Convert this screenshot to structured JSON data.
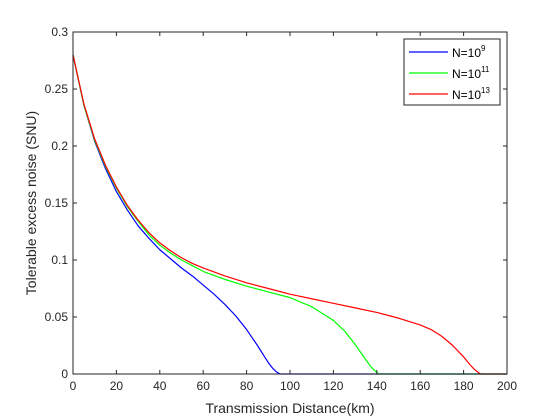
{
  "chart_data": {
    "type": "line",
    "title": "",
    "xlabel": "Transmission Distance(km)",
    "ylabel": "Tolerable excess noise (SNU)",
    "xlim": [
      0,
      200
    ],
    "ylim": [
      0,
      0.3
    ],
    "xticks": [
      0,
      20,
      40,
      60,
      80,
      100,
      120,
      140,
      160,
      180,
      200
    ],
    "yticks": [
      0,
      0.05,
      0.1,
      0.15,
      0.2,
      0.25,
      0.3
    ],
    "xtick_labels": [
      "0",
      "20",
      "40",
      "60",
      "80",
      "100",
      "120",
      "140",
      "160",
      "180",
      "200"
    ],
    "ytick_labels": [
      "0",
      "0.05",
      "0.1",
      "0.15",
      "0.2",
      "0.25",
      "0.3"
    ],
    "grid": false,
    "legend_position": "top-right",
    "series": [
      {
        "name_base": "N=10",
        "name_exp": "9",
        "color": "#0000ff",
        "x": [
          0,
          5,
          10,
          15,
          20,
          25,
          30,
          35,
          40,
          45,
          50,
          55,
          60,
          65,
          70,
          75,
          80,
          85,
          88,
          90,
          92,
          94,
          95.5,
          100,
          200
        ],
        "y": [
          0.28,
          0.236,
          0.204,
          0.18,
          0.16,
          0.144,
          0.13,
          0.119,
          0.109,
          0.101,
          0.093,
          0.086,
          0.078,
          0.07,
          0.061,
          0.051,
          0.039,
          0.025,
          0.016,
          0.01,
          0.005,
          0.0015,
          0,
          0,
          0
        ]
      },
      {
        "name_base": "N=10",
        "name_exp": "11",
        "color": "#00ff00",
        "x": [
          0,
          5,
          10,
          15,
          20,
          25,
          30,
          35,
          40,
          45,
          50,
          55,
          60,
          70,
          80,
          90,
          100,
          110,
          120,
          125,
          130,
          134,
          137,
          139,
          141,
          145,
          200
        ],
        "y": [
          0.28,
          0.236,
          0.205,
          0.182,
          0.163,
          0.147,
          0.134,
          0.122,
          0.113,
          0.106,
          0.1,
          0.095,
          0.09,
          0.083,
          0.077,
          0.072,
          0.067,
          0.059,
          0.047,
          0.038,
          0.026,
          0.015,
          0.007,
          0.003,
          0,
          0,
          0
        ]
      },
      {
        "name_base": "N=10",
        "name_exp": "13",
        "color": "#ff0000",
        "x": [
          0,
          5,
          10,
          15,
          20,
          25,
          30,
          35,
          40,
          45,
          50,
          55,
          60,
          70,
          80,
          90,
          100,
          110,
          120,
          130,
          140,
          150,
          160,
          165,
          170,
          175,
          180,
          183,
          185,
          187,
          188,
          190,
          200
        ],
        "y": [
          0.28,
          0.237,
          0.206,
          0.183,
          0.164,
          0.148,
          0.135,
          0.124,
          0.115,
          0.108,
          0.102,
          0.097,
          0.093,
          0.086,
          0.08,
          0.075,
          0.07,
          0.066,
          0.062,
          0.058,
          0.054,
          0.049,
          0.043,
          0.039,
          0.033,
          0.025,
          0.015,
          0.008,
          0.004,
          0.001,
          0,
          0,
          0
        ]
      }
    ]
  }
}
